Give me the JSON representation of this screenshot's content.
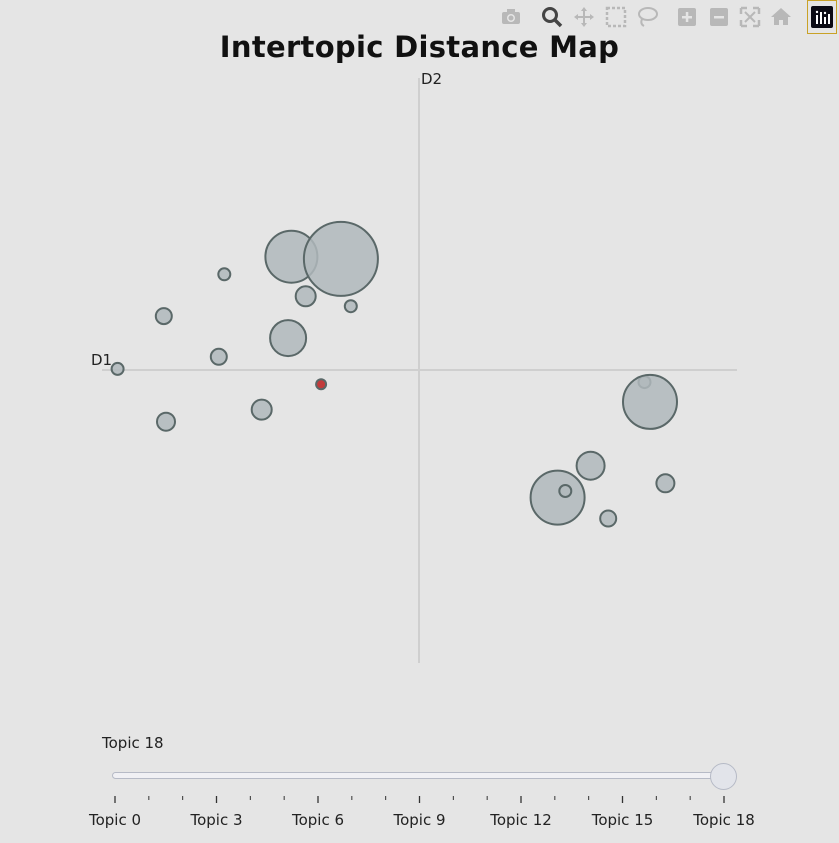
{
  "modebar": {
    "buttons": [
      "camera-icon",
      "zoom-icon",
      "pan-icon",
      "box-select-icon",
      "lasso-icon",
      "zoom-in-icon",
      "zoom-out-icon",
      "autoscale-icon",
      "reset-axes-icon"
    ],
    "logo": "plotly-logo-icon"
  },
  "chart_data": {
    "type": "scatter",
    "title": "Intertopic Distance Map",
    "xlabel": "D1",
    "ylabel": "D2",
    "bubble_color": "#b0b8bc",
    "bubble_edge": "#5a6868",
    "selected_color": "#c23b3b",
    "points": [
      {
        "x": -1.16,
        "y": 1.03,
        "size": 26
      },
      {
        "x": -0.71,
        "y": 1.01,
        "size": 37
      },
      {
        "x": -1.77,
        "y": 0.87,
        "size": 6
      },
      {
        "x": -1.03,
        "y": 0.67,
        "size": 10
      },
      {
        "x": -0.62,
        "y": 0.58,
        "size": 6
      },
      {
        "x": -2.32,
        "y": 0.49,
        "size": 8
      },
      {
        "x": -1.19,
        "y": 0.29,
        "size": 18
      },
      {
        "x": -1.82,
        "y": 0.12,
        "size": 8
      },
      {
        "x": -2.74,
        "y": 0.01,
        "size": 6
      },
      {
        "x": -0.89,
        "y": -0.13,
        "size": 5,
        "selected": true
      },
      {
        "x": -1.43,
        "y": -0.36,
        "size": 10
      },
      {
        "x": -2.3,
        "y": -0.47,
        "size": 9
      },
      {
        "x": 2.05,
        "y": -0.11,
        "size": 6
      },
      {
        "x": 2.1,
        "y": -0.29,
        "size": 27
      },
      {
        "x": 1.56,
        "y": -0.87,
        "size": 14
      },
      {
        "x": 2.24,
        "y": -1.03,
        "size": 9
      },
      {
        "x": 1.26,
        "y": -1.16,
        "size": 27
      },
      {
        "x": 1.33,
        "y": -1.1,
        "size": 6
      },
      {
        "x": 1.72,
        "y": -1.35,
        "size": 8
      }
    ]
  },
  "slider": {
    "current_label": "Topic 18",
    "value_index": 18,
    "tick_labels": [
      "Topic 0",
      "Topic 3",
      "Topic 6",
      "Topic 9",
      "Topic 12",
      "Topic 15",
      "Topic 18"
    ]
  }
}
